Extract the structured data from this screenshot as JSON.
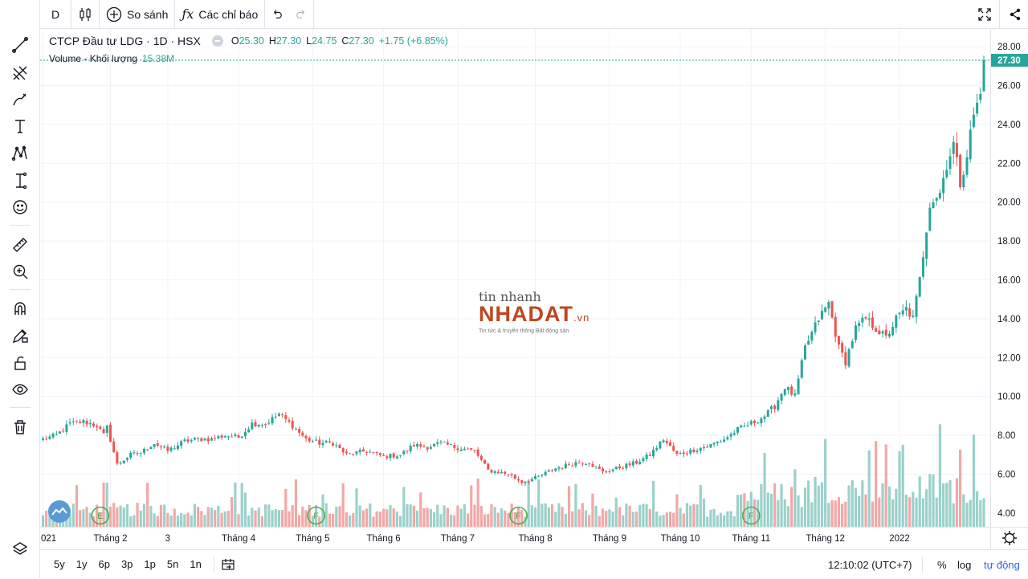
{
  "toolbar": {
    "interval": "D",
    "compare_label": "So sánh",
    "indicators_label": "Các chỉ báo"
  },
  "legend": {
    "symbol": "CTCP Đầu tư LDG · 1D · HSX",
    "o_label": "O",
    "o_value": "25.30",
    "h_label": "H",
    "h_value": "27.30",
    "l_label": "L",
    "l_value": "24.75",
    "c_label": "C",
    "c_value": "27.30",
    "change": "+1.75 (+6.85%)",
    "volume_label": "Volume - Khối lượng",
    "volume_value": "15.38M"
  },
  "watermark": {
    "top": "tin nhanh",
    "main": "NHADAT",
    "suffix": ".vn",
    "sub": "Tin tức & truyền thông Bất động sản"
  },
  "bottom": {
    "ranges": [
      "5y",
      "1y",
      "6p",
      "3p",
      "1p",
      "5n",
      "1n"
    ],
    "time": "12:10:02 (UTC+7)",
    "percent": "%",
    "log": "log",
    "auto": "tự động"
  },
  "colors": {
    "up": "#26a69a",
    "down": "#ef5350",
    "up_volume": "#9bd1cb",
    "down_volume": "#f2a8a6",
    "price_line": "#26a69a"
  },
  "chart_data": {
    "type": "candlestick",
    "title": "CTCP Đầu tư LDG · 1D · HSX",
    "ylim": [
      3.5,
      28.5
    ],
    "y_ticks": [
      4,
      6,
      8,
      10,
      12,
      14,
      16,
      18,
      20,
      22,
      24,
      26,
      28
    ],
    "y_tick_labels": [
      "4.00",
      "6.00",
      "8.00",
      "10.00",
      "12.00",
      "14.00",
      "16.00",
      "18.00",
      "20.00",
      "22.00",
      "24.00",
      "26.00",
      "28.00"
    ],
    "last_price": 27.3,
    "last_price_label": "27.30",
    "x_labels": [
      {
        "label": "021",
        "index": 0
      },
      {
        "label": "Tháng 2",
        "index": 20
      },
      {
        "label": "3",
        "index": 37
      },
      {
        "label": "Tháng 4",
        "index": 58
      },
      {
        "label": "Tháng 5",
        "index": 80
      },
      {
        "label": "Tháng 6",
        "index": 101
      },
      {
        "label": "Tháng 7",
        "index": 123
      },
      {
        "label": "Tháng 8",
        "index": 146
      },
      {
        "label": "Tháng 9",
        "index": 168
      },
      {
        "label": "Tháng 10",
        "index": 189
      },
      {
        "label": "Tháng 11",
        "index": 210
      },
      {
        "label": "Tháng 12",
        "index": 232
      },
      {
        "label": "2022",
        "index": 254
      }
    ],
    "close_path": [
      [
        0,
        7.8
      ],
      [
        4,
        8.0
      ],
      [
        8,
        8.6
      ],
      [
        12,
        8.7
      ],
      [
        16,
        8.5
      ],
      [
        18,
        8.0
      ],
      [
        19,
        8.4
      ],
      [
        22,
        6.5
      ],
      [
        26,
        7.0
      ],
      [
        29,
        7.1
      ],
      [
        33,
        7.6
      ],
      [
        37,
        7.2
      ],
      [
        42,
        7.7
      ],
      [
        46,
        7.8
      ],
      [
        50,
        7.8
      ],
      [
        54,
        8.0
      ],
      [
        58,
        7.9
      ],
      [
        62,
        8.6
      ],
      [
        66,
        8.6
      ],
      [
        70,
        9.1
      ],
      [
        74,
        8.5
      ],
      [
        78,
        7.8
      ],
      [
        82,
        7.6
      ],
      [
        86,
        7.6
      ],
      [
        90,
        7.0
      ],
      [
        96,
        7.2
      ],
      [
        101,
        6.9
      ],
      [
        106,
        7.0
      ],
      [
        110,
        7.5
      ],
      [
        114,
        7.4
      ],
      [
        118,
        7.6
      ],
      [
        122,
        7.4
      ],
      [
        128,
        7.2
      ],
      [
        132,
        6.2
      ],
      [
        138,
        6.0
      ],
      [
        142,
        5.6
      ],
      [
        146,
        5.8
      ],
      [
        152,
        6.3
      ],
      [
        158,
        6.6
      ],
      [
        162,
        6.6
      ],
      [
        166,
        6.1
      ],
      [
        170,
        6.3
      ],
      [
        176,
        6.6
      ],
      [
        180,
        7.0
      ],
      [
        184,
        7.8
      ],
      [
        188,
        7.0
      ],
      [
        192,
        7.2
      ],
      [
        198,
        7.5
      ],
      [
        202,
        7.8
      ],
      [
        206,
        8.3
      ],
      [
        211,
        8.7
      ],
      [
        214,
        9.0
      ],
      [
        217,
        9.5
      ],
      [
        220,
        10.5
      ],
      [
        223,
        10.0
      ],
      [
        226,
        12.5
      ],
      [
        230,
        14.0
      ],
      [
        233,
        14.8
      ],
      [
        236,
        12.5
      ],
      [
        238,
        11.8
      ],
      [
        241,
        13.5
      ],
      [
        244,
        14.0
      ],
      [
        247,
        13.5
      ],
      [
        250,
        13.0
      ],
      [
        253,
        14.0
      ],
      [
        256,
        14.5
      ],
      [
        258,
        14.0
      ],
      [
        260,
        16.0
      ],
      [
        263,
        20.0
      ],
      [
        266,
        20.5
      ],
      [
        268,
        22.0
      ],
      [
        270,
        23.0
      ],
      [
        272,
        21.0
      ],
      [
        274,
        22.5
      ],
      [
        276,
        24.5
      ],
      [
        278,
        25.5
      ],
      [
        279,
        27.3
      ]
    ],
    "events": [
      {
        "label": "E",
        "index": 17
      },
      {
        "label": "F",
        "index": 81
      },
      {
        "label": "F",
        "index": 141
      },
      {
        "label": "F",
        "index": 210
      }
    ]
  }
}
